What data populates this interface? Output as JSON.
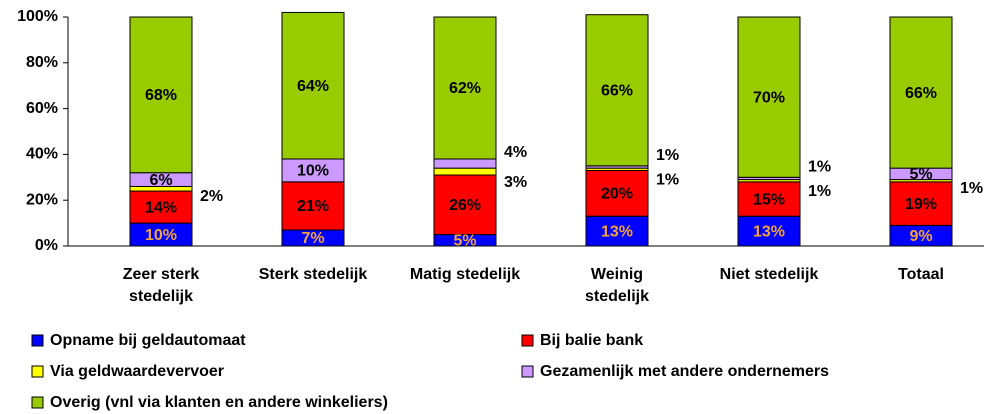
{
  "chart_data": {
    "type": "stacked_bar",
    "categories": [
      "Zeer sterk stedelijk",
      "Sterk stedelijk",
      "Matig stedelijk",
      "Weinig stedelijk",
      "Niet stedelijk",
      "Totaal"
    ],
    "series": [
      {
        "name": "Opname bij geldautomaat",
        "color": "#0000ff",
        "label_color": "#f5a33c",
        "values": [
          10,
          7,
          5,
          13,
          13,
          9
        ],
        "value_labels": [
          "10%",
          "7%",
          "5%",
          "13%",
          "13%",
          "9%"
        ]
      },
      {
        "name": "Bij balie bank",
        "color": "#ff0000",
        "label_color": "#000000",
        "values": [
          14,
          21,
          26,
          20,
          15,
          19
        ],
        "value_labels": [
          "14%",
          "21%",
          "26%",
          "20%",
          "15%",
          "19%"
        ]
      },
      {
        "name": "Via geldwaardevervoer",
        "color": "#ffff00",
        "label_color": "#000000",
        "values": [
          2,
          0,
          3,
          1,
          1,
          1
        ],
        "value_labels": [
          "2%",
          null,
          "3%",
          "1%",
          "1%",
          "1%"
        ]
      },
      {
        "name": "Gezamenlijk met andere ondernemers",
        "color": "#cc99ff",
        "label_color": "#000000",
        "values": [
          6,
          10,
          4,
          1,
          1,
          5
        ],
        "value_labels": [
          "6%",
          "10%",
          "4%",
          "1%",
          "1%",
          "5%"
        ]
      },
      {
        "name": "Overig (vnl via klanten en andere winkeliers)",
        "color": "#99cc00",
        "label_color": "#000000",
        "values": [
          68,
          64,
          62,
          66,
          70,
          66
        ],
        "value_labels": [
          "68%",
          "64%",
          "62%",
          "66%",
          "70%",
          "66%"
        ]
      }
    ],
    "ylim": [
      0,
      100
    ],
    "yticks": [
      {
        "value": 0,
        "label": "0%"
      },
      {
        "value": 20,
        "label": "20%"
      },
      {
        "value": 40,
        "label": "40%"
      },
      {
        "value": 60,
        "label": "60%"
      },
      {
        "value": 80,
        "label": "80%"
      },
      {
        "value": 100,
        "label": "100%"
      }
    ],
    "grid": false
  }
}
